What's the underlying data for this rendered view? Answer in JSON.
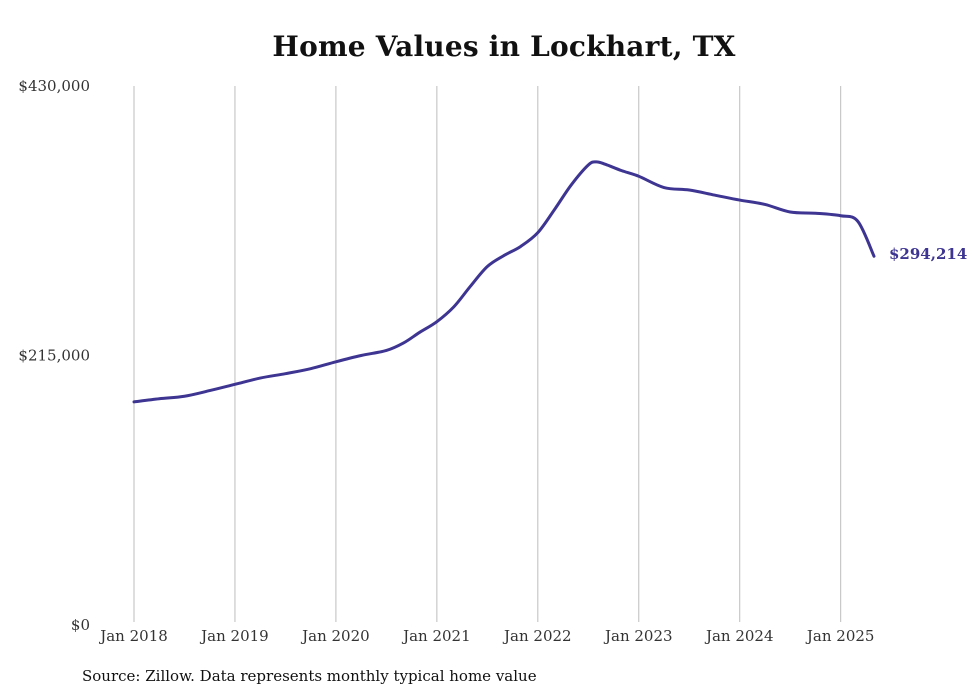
{
  "chart_data": {
    "type": "line",
    "title": "Home Values in Lockhart, TX",
    "xlabel": "",
    "ylabel": "",
    "ylim": [
      0,
      430000
    ],
    "y_ticks": [
      {
        "value": 0,
        "label": "$0"
      },
      {
        "value": 215000,
        "label": "$215,000"
      },
      {
        "value": 430000,
        "label": "$430,000"
      }
    ],
    "x_ticks": [
      {
        "value": 2018,
        "label": "Jan 2018"
      },
      {
        "value": 2019,
        "label": "Jan 2019"
      },
      {
        "value": 2020,
        "label": "Jan 2020"
      },
      {
        "value": 2021,
        "label": "Jan 2021"
      },
      {
        "value": 2022,
        "label": "Jan 2022"
      },
      {
        "value": 2023,
        "label": "Jan 2023"
      },
      {
        "value": 2024,
        "label": "Jan 2024"
      },
      {
        "value": 2025,
        "label": "Jan 2025"
      }
    ],
    "xlim": [
      2018,
      2025.33
    ],
    "grid": "vertical",
    "series": [
      {
        "color": "#3d3591",
        "points": [
          {
            "x": 2018.0,
            "y": 178000
          },
          {
            "x": 2018.25,
            "y": 180500
          },
          {
            "x": 2018.5,
            "y": 182500
          },
          {
            "x": 2018.75,
            "y": 187000
          },
          {
            "x": 2019.0,
            "y": 192000
          },
          {
            "x": 2019.25,
            "y": 197000
          },
          {
            "x": 2019.5,
            "y": 200500
          },
          {
            "x": 2019.75,
            "y": 204500
          },
          {
            "x": 2020.0,
            "y": 210000
          },
          {
            "x": 2020.25,
            "y": 215000
          },
          {
            "x": 2020.5,
            "y": 219000
          },
          {
            "x": 2020.67,
            "y": 225000
          },
          {
            "x": 2020.83,
            "y": 233500
          },
          {
            "x": 2021.0,
            "y": 242000
          },
          {
            "x": 2021.17,
            "y": 254000
          },
          {
            "x": 2021.33,
            "y": 270000
          },
          {
            "x": 2021.5,
            "y": 286000
          },
          {
            "x": 2021.67,
            "y": 295000
          },
          {
            "x": 2021.83,
            "y": 302000
          },
          {
            "x": 2022.0,
            "y": 313000
          },
          {
            "x": 2022.17,
            "y": 332000
          },
          {
            "x": 2022.33,
            "y": 351000
          },
          {
            "x": 2022.5,
            "y": 367000
          },
          {
            "x": 2022.58,
            "y": 369500
          },
          {
            "x": 2022.67,
            "y": 367500
          },
          {
            "x": 2022.83,
            "y": 362500
          },
          {
            "x": 2023.0,
            "y": 358000
          },
          {
            "x": 2023.25,
            "y": 349000
          },
          {
            "x": 2023.5,
            "y": 347000
          },
          {
            "x": 2023.75,
            "y": 343000
          },
          {
            "x": 2024.0,
            "y": 339000
          },
          {
            "x": 2024.25,
            "y": 335500
          },
          {
            "x": 2024.5,
            "y": 329500
          },
          {
            "x": 2024.75,
            "y": 328500
          },
          {
            "x": 2025.0,
            "y": 326500
          },
          {
            "x": 2025.17,
            "y": 322000
          },
          {
            "x": 2025.33,
            "y": 294214
          }
        ]
      }
    ],
    "annotations": [
      {
        "text": "$294,214",
        "x": 2025.33,
        "y": 294214,
        "color": "#3d3591"
      }
    ]
  },
  "footer": {
    "source": "Source: Zillow. Data represents monthly typical home value"
  }
}
